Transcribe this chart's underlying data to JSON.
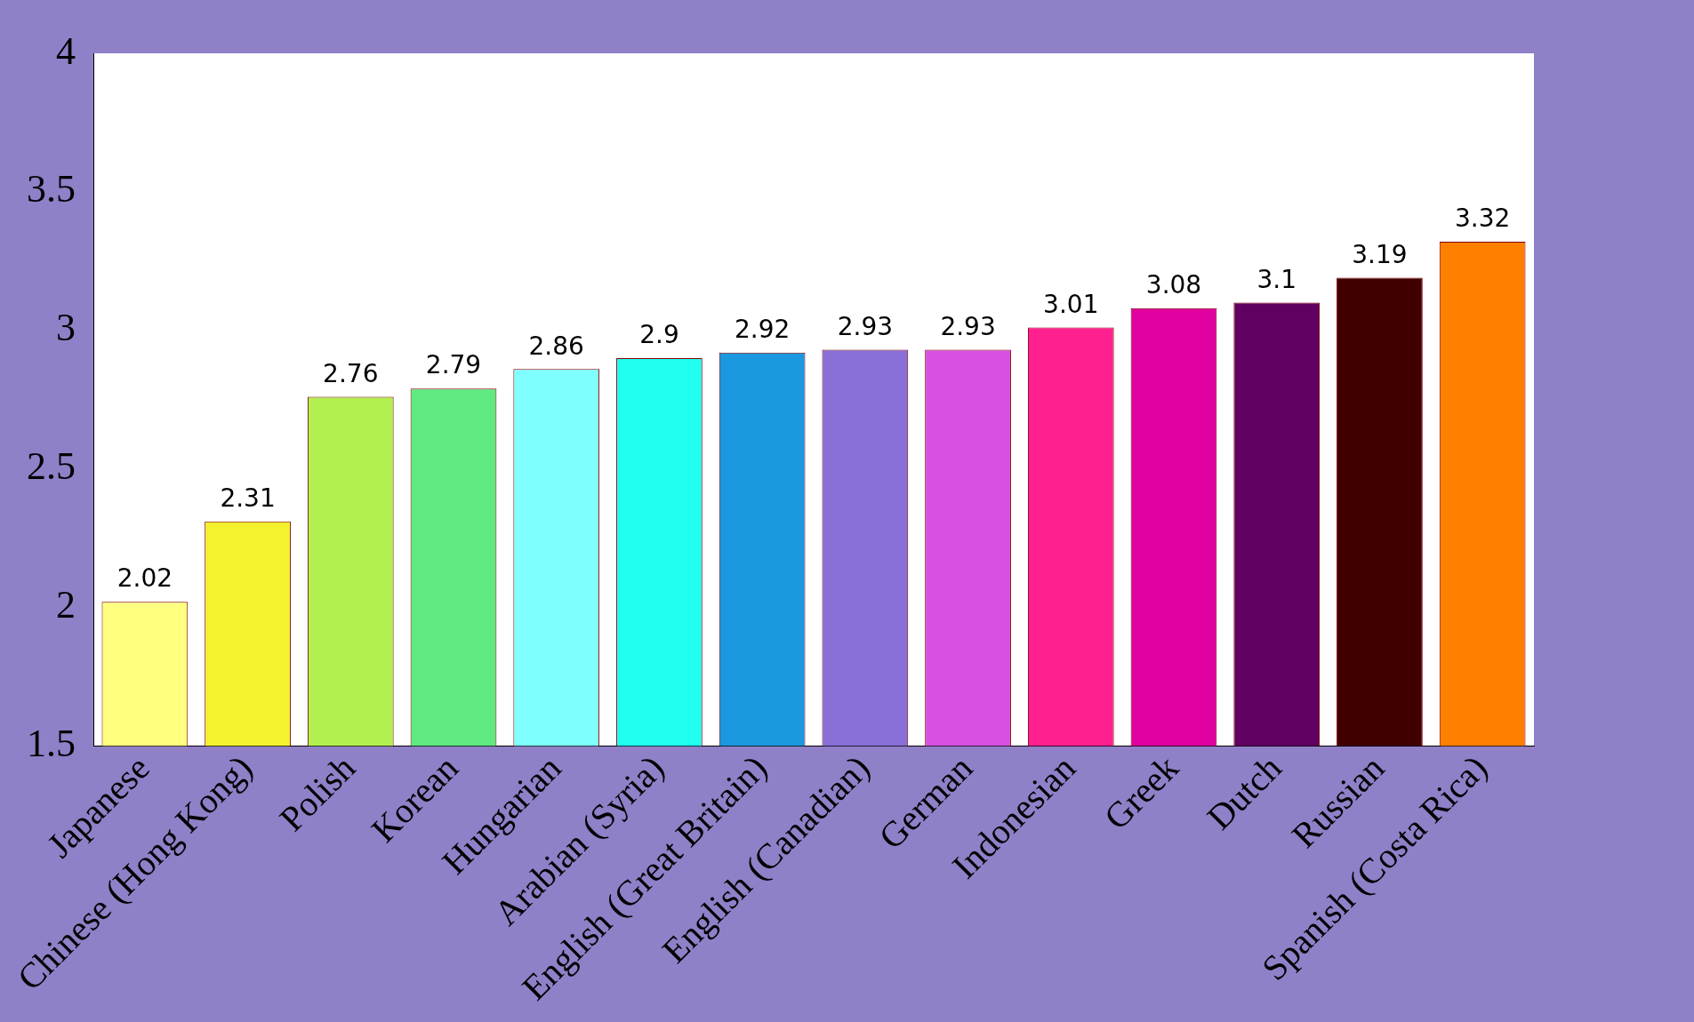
{
  "chart_data": {
    "type": "bar",
    "categories": [
      "Japanese",
      "Chinese (Hong Kong)",
      "Polish",
      "Korean",
      "Hungarian",
      "Arabian (Syria)",
      "English (Great Britain)",
      "English (Canadian)",
      "German",
      "Indonesian",
      "Greek",
      "Dutch",
      "Russian",
      "Spanish (Costa Rica)"
    ],
    "values": [
      2.02,
      2.31,
      2.76,
      2.79,
      2.86,
      2.9,
      2.92,
      2.93,
      2.93,
      3.01,
      3.08,
      3.1,
      3.19,
      3.32
    ],
    "colors": [
      "#ffff80",
      "#f2f22e",
      "#b2f050",
      "#5eea80",
      "#80ffff",
      "#20fff0",
      "#1a98e0",
      "#8870d8",
      "#d850e0",
      "#ff2090",
      "#e000a0",
      "#600060",
      "#400000",
      "#ff8000"
    ],
    "ylim": [
      1.5,
      4
    ],
    "yticks": [
      1.5,
      2,
      2.5,
      3,
      3.5,
      4
    ],
    "grid": false,
    "data_labels": true
  }
}
